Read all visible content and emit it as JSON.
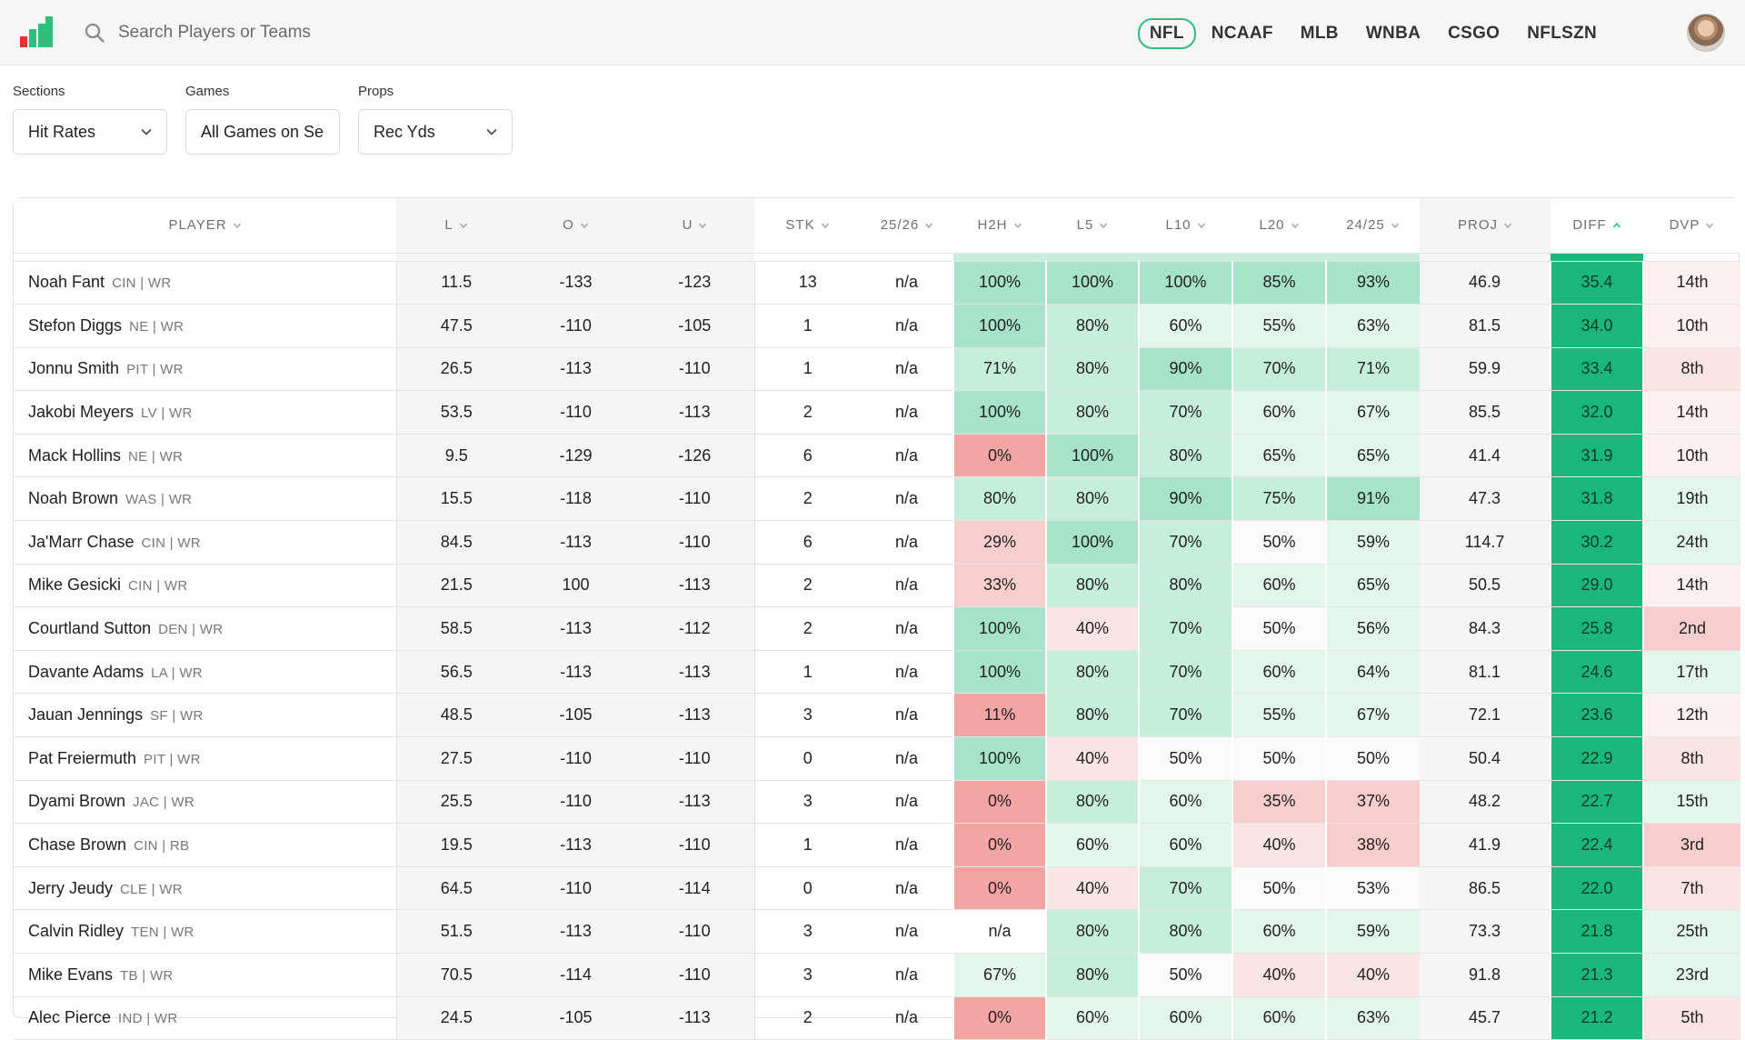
{
  "search": {
    "placeholder": "Search Players or Teams"
  },
  "leagues": [
    {
      "label": "NFL",
      "active": true
    },
    {
      "label": "NCAAF",
      "active": false
    },
    {
      "label": "MLB",
      "active": false
    },
    {
      "label": "WNBA",
      "active": false
    },
    {
      "label": "CSGO",
      "active": false
    },
    {
      "label": "NFLSZN",
      "active": false
    }
  ],
  "filters": {
    "sections": {
      "label": "Sections",
      "value": "Hit Rates"
    },
    "games": {
      "label": "Games",
      "value": "All Games on Se"
    },
    "props": {
      "label": "Props",
      "value": "Rec Yds"
    }
  },
  "columns": [
    "PLAYER",
    "L",
    "O",
    "U",
    "STK",
    "25/26",
    "H2H",
    "L5",
    "L10",
    "L20",
    "24/25",
    "PROJ",
    "DIFF",
    "DVP"
  ],
  "sorted_column": "DIFF",
  "colors": {
    "accent": "#2fbf7d",
    "diff_bg": "#19b779",
    "green_strong": "#a6e3c9",
    "green_mid": "#c5eedb",
    "green_light": "#e2f6ec",
    "neutral": "#fafafa",
    "red_light": "#fbe4e4",
    "red_mid": "#f8cdcd",
    "red_strong": "#f5a4a4"
  },
  "rows": [
    {
      "name": "Noah Fant",
      "team": "CIN | WR",
      "l": "11.5",
      "o": "-133",
      "u": "-123",
      "stk": "13",
      "s2526": "n/a",
      "h2h": "100%",
      "l5": "100%",
      "l10": "100%",
      "l20": "85%",
      "s2425": "93%",
      "proj": "46.9",
      "diff": "35.4",
      "dvp": "14th"
    },
    {
      "name": "Stefon Diggs",
      "team": "NE | WR",
      "l": "47.5",
      "o": "-110",
      "u": "-105",
      "stk": "1",
      "s2526": "n/a",
      "h2h": "100%",
      "l5": "80%",
      "l10": "60%",
      "l20": "55%",
      "s2425": "63%",
      "proj": "81.5",
      "diff": "34.0",
      "dvp": "10th"
    },
    {
      "name": "Jonnu Smith",
      "team": "PIT | WR",
      "l": "26.5",
      "o": "-113",
      "u": "-110",
      "stk": "1",
      "s2526": "n/a",
      "h2h": "71%",
      "l5": "80%",
      "l10": "90%",
      "l20": "70%",
      "s2425": "71%",
      "proj": "59.9",
      "diff": "33.4",
      "dvp": "8th"
    },
    {
      "name": "Jakobi Meyers",
      "team": "LV | WR",
      "l": "53.5",
      "o": "-110",
      "u": "-113",
      "stk": "2",
      "s2526": "n/a",
      "h2h": "100%",
      "l5": "80%",
      "l10": "70%",
      "l20": "60%",
      "s2425": "67%",
      "proj": "85.5",
      "diff": "32.0",
      "dvp": "14th"
    },
    {
      "name": "Mack Hollins",
      "team": "NE | WR",
      "l": "9.5",
      "o": "-129",
      "u": "-126",
      "stk": "6",
      "s2526": "n/a",
      "h2h": "0%",
      "l5": "100%",
      "l10": "80%",
      "l20": "65%",
      "s2425": "65%",
      "proj": "41.4",
      "diff": "31.9",
      "dvp": "10th"
    },
    {
      "name": "Noah Brown",
      "team": "WAS | WR",
      "l": "15.5",
      "o": "-118",
      "u": "-110",
      "stk": "2",
      "s2526": "n/a",
      "h2h": "80%",
      "l5": "80%",
      "l10": "90%",
      "l20": "75%",
      "s2425": "91%",
      "proj": "47.3",
      "diff": "31.8",
      "dvp": "19th"
    },
    {
      "name": "Ja'Marr Chase",
      "team": "CIN | WR",
      "l": "84.5",
      "o": "-113",
      "u": "-110",
      "stk": "6",
      "s2526": "n/a",
      "h2h": "29%",
      "l5": "100%",
      "l10": "70%",
      "l20": "50%",
      "s2425": "59%",
      "proj": "114.7",
      "diff": "30.2",
      "dvp": "24th"
    },
    {
      "name": "Mike Gesicki",
      "team": "CIN | WR",
      "l": "21.5",
      "o": "100",
      "u": "-113",
      "stk": "2",
      "s2526": "n/a",
      "h2h": "33%",
      "l5": "80%",
      "l10": "80%",
      "l20": "60%",
      "s2425": "65%",
      "proj": "50.5",
      "diff": "29.0",
      "dvp": "14th"
    },
    {
      "name": "Courtland Sutton",
      "team": "DEN | WR",
      "l": "58.5",
      "o": "-113",
      "u": "-112",
      "stk": "2",
      "s2526": "n/a",
      "h2h": "100%",
      "l5": "40%",
      "l10": "70%",
      "l20": "50%",
      "s2425": "56%",
      "proj": "84.3",
      "diff": "25.8",
      "dvp": "2nd"
    },
    {
      "name": "Davante Adams",
      "team": "LA | WR",
      "l": "56.5",
      "o": "-113",
      "u": "-113",
      "stk": "1",
      "s2526": "n/a",
      "h2h": "100%",
      "l5": "80%",
      "l10": "70%",
      "l20": "60%",
      "s2425": "64%",
      "proj": "81.1",
      "diff": "24.6",
      "dvp": "17th"
    },
    {
      "name": "Jauan Jennings",
      "team": "SF | WR",
      "l": "48.5",
      "o": "-105",
      "u": "-113",
      "stk": "3",
      "s2526": "n/a",
      "h2h": "11%",
      "l5": "80%",
      "l10": "70%",
      "l20": "55%",
      "s2425": "67%",
      "proj": "72.1",
      "diff": "23.6",
      "dvp": "12th"
    },
    {
      "name": "Pat Freiermuth",
      "team": "PIT | WR",
      "l": "27.5",
      "o": "-110",
      "u": "-110",
      "stk": "0",
      "s2526": "n/a",
      "h2h": "100%",
      "l5": "40%",
      "l10": "50%",
      "l20": "50%",
      "s2425": "50%",
      "proj": "50.4",
      "diff": "22.9",
      "dvp": "8th"
    },
    {
      "name": "Dyami Brown",
      "team": "JAC | WR",
      "l": "25.5",
      "o": "-110",
      "u": "-113",
      "stk": "3",
      "s2526": "n/a",
      "h2h": "0%",
      "l5": "80%",
      "l10": "60%",
      "l20": "35%",
      "s2425": "37%",
      "proj": "48.2",
      "diff": "22.7",
      "dvp": "15th"
    },
    {
      "name": "Chase Brown",
      "team": "CIN | RB",
      "l": "19.5",
      "o": "-113",
      "u": "-110",
      "stk": "1",
      "s2526": "n/a",
      "h2h": "0%",
      "l5": "60%",
      "l10": "60%",
      "l20": "40%",
      "s2425": "38%",
      "proj": "41.9",
      "diff": "22.4",
      "dvp": "3rd"
    },
    {
      "name": "Jerry Jeudy",
      "team": "CLE | WR",
      "l": "64.5",
      "o": "-110",
      "u": "-114",
      "stk": "0",
      "s2526": "n/a",
      "h2h": "0%",
      "l5": "40%",
      "l10": "70%",
      "l20": "50%",
      "s2425": "53%",
      "proj": "86.5",
      "diff": "22.0",
      "dvp": "7th"
    },
    {
      "name": "Calvin Ridley",
      "team": "TEN | WR",
      "l": "51.5",
      "o": "-113",
      "u": "-110",
      "stk": "3",
      "s2526": "n/a",
      "h2h": "n/a",
      "l5": "80%",
      "l10": "80%",
      "l20": "60%",
      "s2425": "59%",
      "proj": "73.3",
      "diff": "21.8",
      "dvp": "25th"
    },
    {
      "name": "Mike Evans",
      "team": "TB | WR",
      "l": "70.5",
      "o": "-114",
      "u": "-110",
      "stk": "3",
      "s2526": "n/a",
      "h2h": "67%",
      "l5": "80%",
      "l10": "50%",
      "l20": "40%",
      "s2425": "40%",
      "proj": "91.8",
      "diff": "21.3",
      "dvp": "23rd"
    },
    {
      "name": "Alec Pierce",
      "team": "IND | WR",
      "l": "24.5",
      "o": "-105",
      "u": "-113",
      "stk": "2",
      "s2526": "n/a",
      "h2h": "0%",
      "l5": "60%",
      "l10": "60%",
      "l20": "60%",
      "s2425": "63%",
      "proj": "45.7",
      "diff": "21.2",
      "dvp": "5th"
    }
  ]
}
